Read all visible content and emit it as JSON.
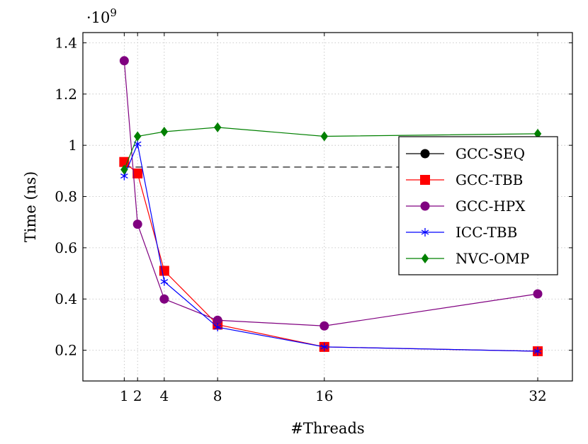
{
  "chart_data": {
    "type": "line",
    "xlabel": "#Threads",
    "ylabel": "Time (ns)",
    "y_multiplier_label": "·10",
    "y_multiplier_exp": "9",
    "x_ticks": [
      1,
      2,
      4,
      8,
      16,
      32
    ],
    "y_ticks": [
      0.2,
      0.4,
      0.6,
      0.8,
      1.0,
      1.2,
      1.4
    ],
    "y_tick_labels": [
      "0.2",
      "0.4",
      "0.6",
      "0.8",
      "1",
      "1.2",
      "1.4"
    ],
    "xlim": [
      -2.1,
      34.6
    ],
    "ylim": [
      0.08,
      1.44
    ],
    "grid": true,
    "legend_position": "right",
    "series": [
      {
        "name": "GCC-SEQ",
        "color": "#000000",
        "marker": "circle",
        "dashed": true,
        "x": [
          1,
          32
        ],
        "values": [
          0.915,
          0.915
        ]
      },
      {
        "name": "GCC-TBB",
        "color": "#ff0000",
        "marker": "square",
        "dashed": false,
        "x": [
          1,
          2,
          4,
          8,
          16,
          32
        ],
        "values": [
          0.935,
          0.89,
          0.51,
          0.3,
          0.213,
          0.196
        ]
      },
      {
        "name": "GCC-HPX",
        "color": "#800080",
        "marker": "circle",
        "dashed": false,
        "x": [
          1,
          2,
          4,
          8,
          16,
          32
        ],
        "values": [
          1.33,
          0.692,
          0.4,
          0.317,
          0.295,
          0.42
        ]
      },
      {
        "name": "ICC-TBB",
        "color": "#0000ff",
        "marker": "star",
        "dashed": false,
        "x": [
          1,
          2,
          4,
          8,
          16,
          32
        ],
        "values": [
          0.88,
          1.005,
          0.468,
          0.29,
          0.213,
          0.196
        ]
      },
      {
        "name": "NVC-OMP",
        "color": "#008000",
        "marker": "diamond",
        "dashed": false,
        "x": [
          1,
          2,
          4,
          8,
          16,
          32
        ],
        "values": [
          0.905,
          1.035,
          1.053,
          1.07,
          1.035,
          1.045
        ]
      }
    ]
  }
}
